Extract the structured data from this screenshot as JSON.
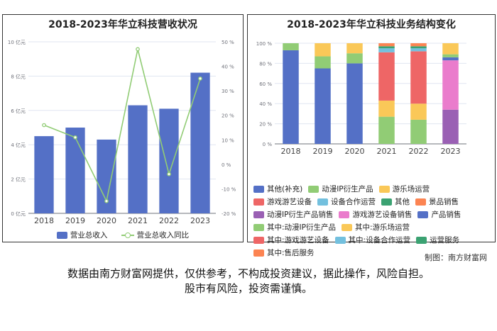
{
  "chart_data": [
    {
      "type": "bar",
      "title": "2018-2023年华立科技营收状况",
      "categories": [
        "2018",
        "2019",
        "2020",
        "2021",
        "2022",
        "2023"
      ],
      "series": [
        {
          "name": "营业总收入",
          "type": "bar",
          "axis": "left",
          "color": "#5470c6",
          "values": [
            4.5,
            5.0,
            4.3,
            6.3,
            6.1,
            8.2
          ]
        },
        {
          "name": "营业总收入同比",
          "type": "line",
          "axis": "right",
          "color": "#91cc75",
          "values": [
            16,
            11,
            -15,
            47,
            -4,
            35
          ]
        }
      ],
      "y_left": {
        "ticks": [
          "0 亿元",
          "2 亿元",
          "4 亿元",
          "6 亿元",
          "8 亿元",
          "10 亿元"
        ],
        "ylim": [
          0,
          10
        ]
      },
      "y_right": {
        "ticks": [
          "-20 %",
          "-10 %",
          "0 %",
          "10 %",
          "20 %",
          "30 %",
          "40 %",
          "50 %"
        ],
        "ylim": [
          -20,
          50
        ]
      },
      "legend_position": "bottom",
      "grid": true
    },
    {
      "type": "bar",
      "stacked": true,
      "title": "2018-2023年华立科技业务结构变化",
      "categories": [
        "2018",
        "2019",
        "2020",
        "2021",
        "2022",
        "2023"
      ],
      "y_ticks": [
        "0 %",
        "20 %",
        "40 %",
        "60 %",
        "80 %",
        "100 %"
      ],
      "ylim": [
        0,
        100
      ],
      "legend_position": "bottom",
      "series": [
        {
          "name": "其他(补充)",
          "color": "#5470c6",
          "values": [
            93,
            75,
            80,
            0,
            0,
            0
          ]
        },
        {
          "name": "动漫IP衍生产品",
          "color": "#91cc75",
          "values": [
            7,
            12,
            10,
            0,
            0,
            0
          ]
        },
        {
          "name": "游乐场运营",
          "color": "#fac858",
          "values": [
            0,
            13,
            10,
            0,
            0,
            0
          ]
        },
        {
          "name": "游戏游艺设备",
          "color": "#ee6666",
          "values": [
            0,
            0,
            0,
            0,
            0,
            0
          ]
        },
        {
          "name": "设备合作运营",
          "color": "#73c0de",
          "values": [
            0,
            0,
            0,
            0,
            0,
            0
          ]
        },
        {
          "name": "其他",
          "color": "#3ba272",
          "values": [
            0,
            0,
            0,
            0,
            0,
            0
          ]
        },
        {
          "name": "景品销售",
          "color": "#fc8452",
          "values": [
            0,
            0,
            0,
            0,
            0,
            0
          ]
        },
        {
          "name": "动漫IP衍生产品销售",
          "color": "#9a60b4",
          "values": [
            0,
            0,
            0,
            0,
            0,
            34
          ]
        },
        {
          "name": "游戏游艺设备销售",
          "color": "#ea7ccc",
          "values": [
            0,
            0,
            0,
            0,
            0,
            49
          ]
        },
        {
          "name": "产品销售",
          "color": "#5470c6",
          "values": [
            0,
            0,
            0,
            0,
            0,
            3
          ]
        },
        {
          "name": "其中:动漫IP衍生产品",
          "color": "#91cc75",
          "values": [
            0,
            0,
            0,
            27,
            24,
            3
          ]
        },
        {
          "name": "其中:游乐场运营",
          "color": "#fac858",
          "values": [
            0,
            0,
            0,
            16,
            16,
            11
          ]
        },
        {
          "name": "其中:游戏游艺设备",
          "color": "#ee6666",
          "values": [
            0,
            0,
            0,
            48,
            52,
            0
          ]
        },
        {
          "name": "其中:设备合作运营",
          "color": "#73c0de",
          "values": [
            0,
            0,
            0,
            4,
            3,
            0
          ]
        },
        {
          "name": "运营服务",
          "color": "#3ba272",
          "values": [
            0,
            0,
            0,
            2,
            2,
            0
          ]
        },
        {
          "name": "其中:售后服务",
          "color": "#fc8452",
          "values": [
            0,
            0,
            0,
            3,
            3,
            0
          ]
        }
      ]
    }
  ],
  "footer": {
    "credit": "制图：南方财富网",
    "disclaimer_line1": "数据由南方财富网提供，仅供参考，不构成投资建议，据此操作，风险自担。",
    "disclaimer_line2": "股市有风险，投资需谨慎。"
  }
}
